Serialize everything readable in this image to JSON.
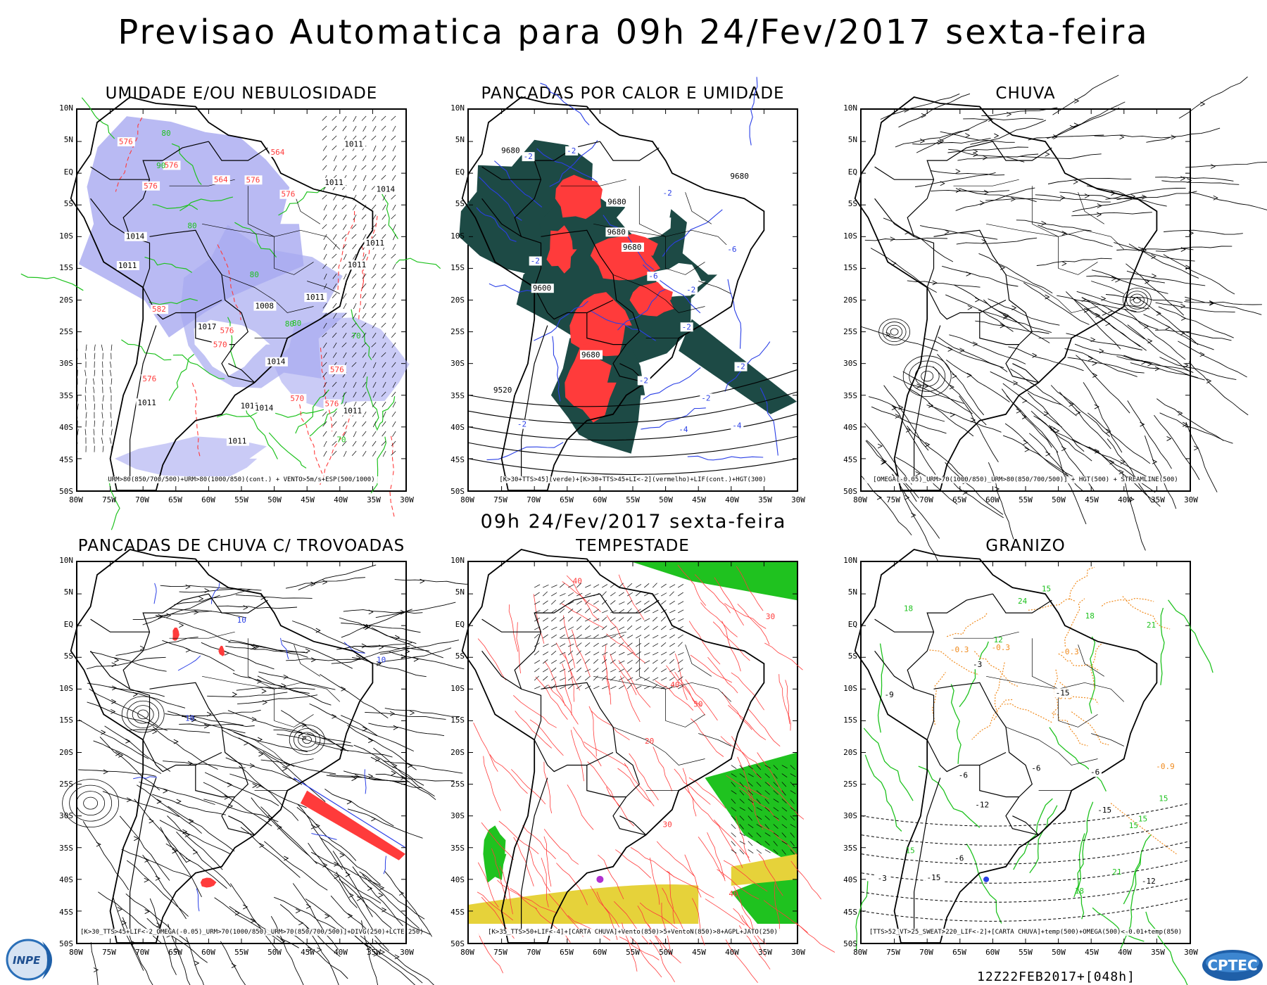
{
  "title": "Previsao Automatica  para 09h 24/Fev/2017 sexta-feira",
  "mid_title": "09h 24/Fev/2017 sexta-feira",
  "footer_stamp": "12Z22FEB2017+[048h]",
  "logos": {
    "left": "INPE",
    "right": "CPTEC"
  },
  "axes": {
    "y_ticks": [
      "10N",
      "5N",
      "EQ",
      "5S",
      "10S",
      "15S",
      "20S",
      "25S",
      "30S",
      "35S",
      "40S",
      "45S",
      "50S"
    ],
    "x_ticks": [
      "80W",
      "75W",
      "70W",
      "65W",
      "60W",
      "55W",
      "50W",
      "45W",
      "40W",
      "35W",
      "30W"
    ]
  },
  "colors": {
    "lavender": "#a7a9f0",
    "green": "#1fc21f",
    "red": "#ff3b3b",
    "dark_teal": "#1d4a45",
    "blue": "#2a3fe6",
    "orange": "#f08a1c",
    "yellow": "#e6d23a",
    "magenta": "#b030d0"
  },
  "panels": [
    {
      "title": "UMIDADE E/OU NEBULOSIDADE",
      "caption": "URM>80(850/700/500)+URM>80(1000/850)(cont.) + VENTO>5m/s+ESP(500/1000)",
      "labels": [
        "1014",
        "1011",
        "1011",
        "1011",
        "1011",
        "1011",
        "1011",
        "1014",
        "1011",
        "1011",
        "1008",
        "1011",
        "1011",
        "1014",
        "1014",
        "1017",
        "576",
        "576",
        "576",
        "576",
        "576",
        "576",
        "576",
        "576",
        "576",
        "570",
        "564",
        "582",
        "570",
        "564",
        "80",
        "80",
        "80",
        "70",
        "70",
        "80",
        "80",
        "90"
      ]
    },
    {
      "title": "PANCADAS POR CALOR E UMIDADE",
      "caption": "[K>30+TTS>45](verde)+[K>30+TTS>45+LI<-2](vermelho)+LIF(cont.)+HGT(300)",
      "labels": [
        "9680",
        "9680",
        "9680",
        "9680",
        "9680",
        "9680",
        "9600",
        "9520",
        "-2",
        "-2",
        "-2",
        "-2",
        "-2",
        "-2",
        "-2",
        "-2",
        "-2",
        "-2",
        "-4",
        "-4",
        "-6",
        "-6"
      ]
    },
    {
      "title": "CHUVA",
      "caption": "[OMEGA(-0.05)_URM>70(1000/850)_URM>80(850/700/500)] + HGT(500) + STREAMLINE(500)",
      "labels": []
    },
    {
      "title": "PANCADAS DE CHUVA C/ TROVOADAS",
      "caption": "[K>30_TTS>45+LIF<-2_OMEGA(-0.05)_URM>70(1000/850)_URM>70(850/700/500)]+DIVG(250)+LCTE(250)",
      "labels": [
        "10",
        "10",
        "10"
      ]
    },
    {
      "title": "TEMPESTADE",
      "caption": "[K>35_TTS>50+LIF<-4]+[CARTA CHUVA]+Vento(850)>5+VentoN(850)>8+AGPL+JATO(250)",
      "labels": [
        "30",
        "40",
        "40",
        "40",
        "50",
        "20",
        "30"
      ]
    },
    {
      "title": "GRANIZO",
      "caption": "[TTS>52_VT>25_SWEAT>220_LIF<-2]+[CARTA CHUVA]+temp(500)+OMEGA(500)<-0.01+temp(850)",
      "labels": [
        "-15",
        "-15",
        "18",
        "15",
        "15",
        "15",
        "-6",
        "-6",
        "-6",
        "-6",
        "-3",
        "-9",
        "-12",
        "-12",
        "-15",
        "15",
        "18",
        "18",
        "21",
        "21",
        "24",
        "12",
        "15",
        "-0.3",
        "-0.3",
        "-0.3",
        "-0.3",
        "-0.9",
        "-3"
      ]
    }
  ]
}
